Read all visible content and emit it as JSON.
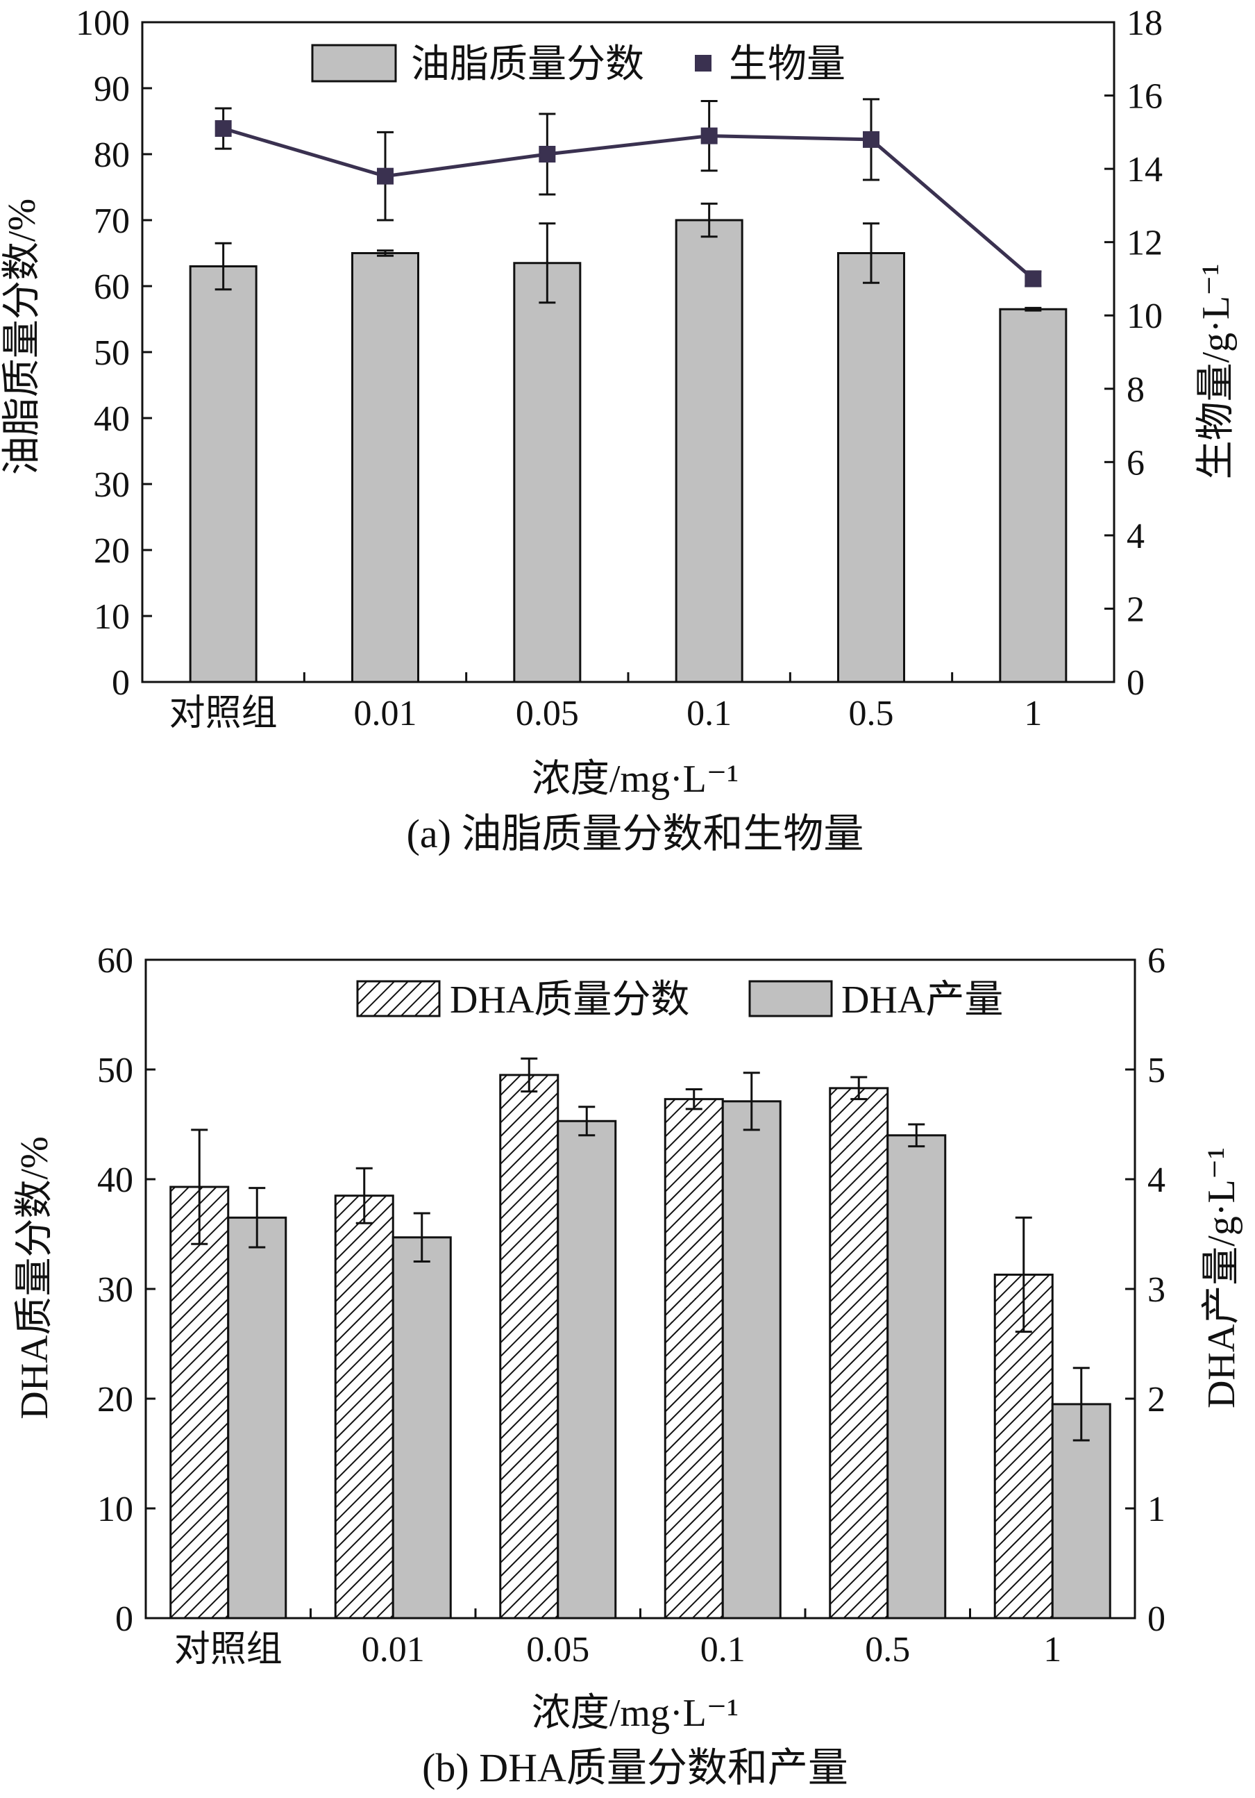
{
  "chart_data": [
    {
      "id": "a",
      "type": "bar+line",
      "caption": "(a) 油脂质量分数和生物量",
      "xlabel": "浓度/mg·L⁻¹",
      "ylabel_left": "油脂质量分数/%",
      "ylabel_right": "生物量/g·L⁻¹",
      "categories": [
        "对照组",
        "0.01",
        "0.05",
        "0.1",
        "0.5",
        "1"
      ],
      "ylim_left": [
        0,
        100
      ],
      "yticks_left": [
        0,
        10,
        20,
        30,
        40,
        50,
        60,
        70,
        80,
        90,
        100
      ],
      "ylim_right": [
        0,
        18
      ],
      "yticks_right": [
        0,
        2,
        4,
        6,
        8,
        10,
        12,
        14,
        16,
        18
      ],
      "legend_position": "top-center",
      "grid": false,
      "series": [
        {
          "name": "油脂质量分数",
          "kind": "bar",
          "axis": "left",
          "color": "#c0c0c0",
          "values": [
            63,
            65,
            63.5,
            70,
            65,
            56.5
          ],
          "errors": [
            3.5,
            0.4,
            6,
            2.5,
            4.5,
            0.2
          ]
        },
        {
          "name": "生物量",
          "kind": "line",
          "axis": "right",
          "color": "#3a3150",
          "values": [
            15.1,
            13.8,
            14.4,
            14.9,
            14.8,
            11.0
          ],
          "errors": [
            0.55,
            1.2,
            1.1,
            0.95,
            1.1,
            0.2
          ]
        }
      ]
    },
    {
      "id": "b",
      "type": "bar",
      "caption": "(b) DHA质量分数和产量",
      "xlabel": "浓度/mg·L⁻¹",
      "ylabel_left": "DHA质量分数/%",
      "ylabel_right": "DHA产量/g·L⁻¹",
      "categories": [
        "对照组",
        "0.01",
        "0.05",
        "0.1",
        "0.5",
        "1"
      ],
      "ylim_left": [
        0,
        60
      ],
      "yticks_left": [
        0,
        10,
        20,
        30,
        40,
        50,
        60
      ],
      "ylim_right": [
        0,
        6
      ],
      "yticks_right": [
        0,
        1,
        2,
        3,
        4,
        5,
        6
      ],
      "legend_position": "top-center",
      "grid": false,
      "series": [
        {
          "name": "DHA质量分数",
          "kind": "bar",
          "pattern": "hatch",
          "axis": "left",
          "values": [
            39.3,
            38.5,
            49.5,
            47.3,
            48.3,
            31.3
          ],
          "errors": [
            5.2,
            2.5,
            1.5,
            0.9,
            1.0,
            5.2
          ]
        },
        {
          "name": "DHA产量",
          "kind": "bar",
          "axis": "right",
          "color": "#c0c0c0",
          "values": [
            3.65,
            3.47,
            4.53,
            4.71,
            4.4,
            1.95
          ],
          "errors": [
            0.27,
            0.22,
            0.13,
            0.26,
            0.1,
            0.33
          ]
        }
      ]
    }
  ]
}
